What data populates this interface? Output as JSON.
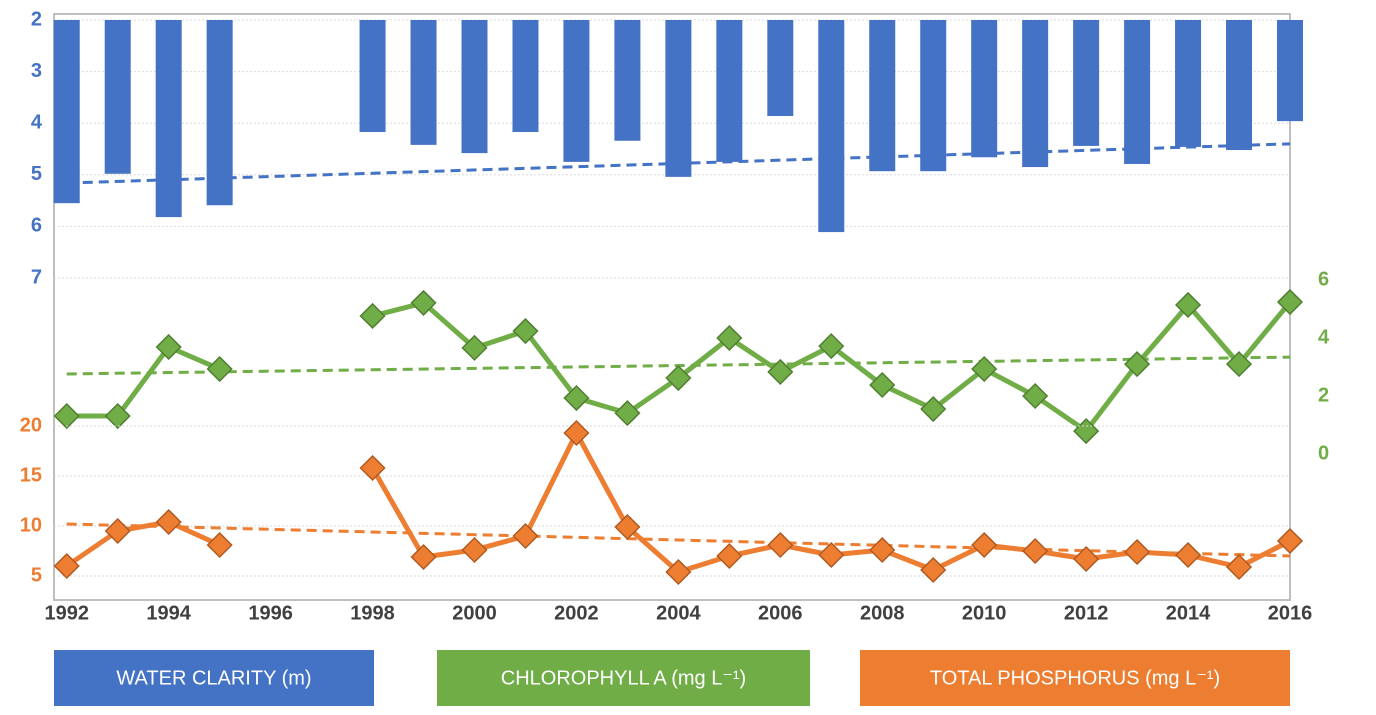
{
  "chart_data": {
    "type": "combo",
    "x": [
      1992,
      1993,
      1994,
      1995,
      1996,
      1997,
      1998,
      1999,
      2000,
      2001,
      2002,
      2003,
      2004,
      2005,
      2006,
      2007,
      2008,
      2009,
      2010,
      2011,
      2012,
      2013,
      2014,
      2015,
      2016
    ],
    "xlim": [
      1991.75,
      2016
    ],
    "xticks": [
      1992,
      1994,
      1996,
      1998,
      2000,
      2002,
      2004,
      2006,
      2008,
      2010,
      2012,
      2014,
      2016
    ],
    "series": [
      {
        "name": "WATER CLARITY (m)",
        "type": "bar",
        "color": "#4472c4",
        "inverted": true,
        "ylim": [
          2,
          7
        ],
        "yticks": [
          2,
          3,
          4,
          5,
          6,
          7
        ],
        "values": [
          5.55,
          4.98,
          5.82,
          5.59,
          null,
          null,
          4.17,
          4.42,
          4.58,
          4.17,
          4.75,
          4.34,
          5.04,
          4.75,
          3.86,
          6.11,
          4.93,
          4.93,
          4.66,
          4.85,
          4.44,
          4.79,
          4.46,
          4.52,
          3.96
        ],
        "trend": [
          5.16,
          4.4
        ]
      },
      {
        "name": "CHLOROPHYLL A (mg L⁻¹)",
        "type": "line",
        "color": "#70ad47",
        "axis": "y2",
        "ylim": [
          0,
          6
        ],
        "yticks": [
          0,
          2,
          4,
          6
        ],
        "values": [
          1.31,
          1.31,
          3.69,
          2.93,
          null,
          null,
          4.76,
          5.21,
          3.66,
          4.24,
          1.93,
          1.41,
          2.62,
          4.0,
          2.83,
          3.72,
          2.38,
          1.55,
          2.93,
          2.0,
          0.79,
          3.1,
          5.14,
          3.1,
          5.24
        ],
        "trend": [
          2.76,
          3.34
        ]
      },
      {
        "name": "TOTAL PHOSPHORUS (mg L⁻¹)",
        "type": "line",
        "color": "#ed7d31",
        "ylim": [
          2.5,
          20
        ],
        "yticks": [
          5,
          10,
          15,
          20
        ],
        "values": [
          6.0,
          9.5,
          10.4,
          8.1,
          null,
          null,
          15.8,
          6.9,
          7.6,
          9.0,
          19.3,
          9.9,
          5.4,
          7.0,
          8.1,
          7.1,
          7.6,
          5.6,
          8.1,
          7.5,
          6.7,
          7.4,
          7.1,
          5.9,
          8.5
        ],
        "trend": [
          10.2,
          7.0
        ]
      }
    ],
    "grid": true
  }
}
